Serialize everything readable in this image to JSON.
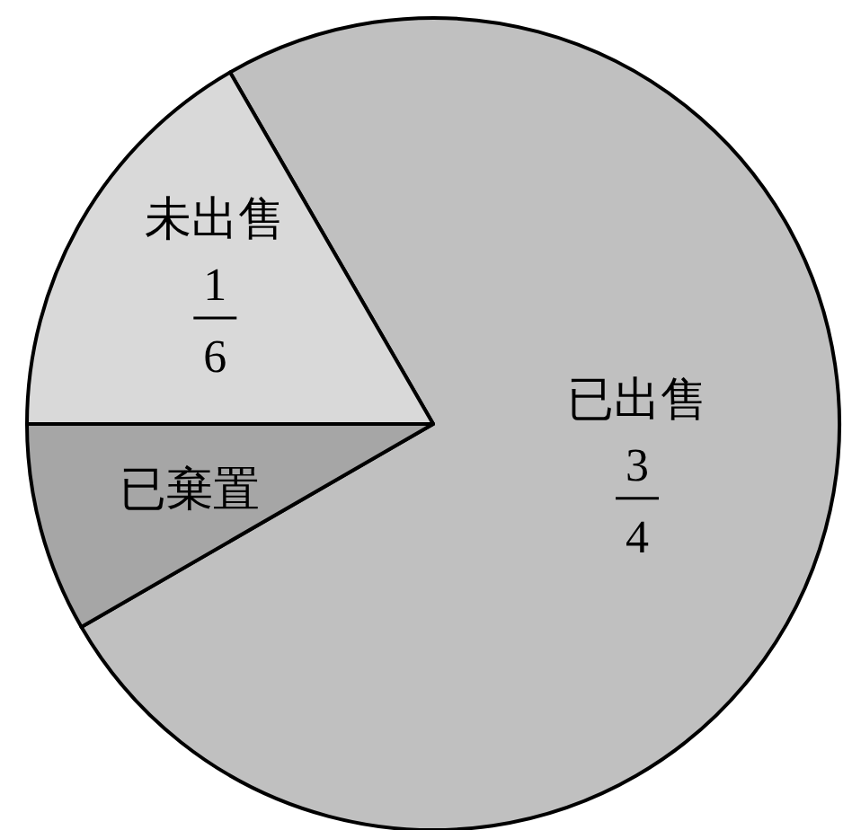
{
  "chart_data": {
    "type": "pie",
    "categories": [
      "已出售",
      "已棄置",
      "未出售"
    ],
    "values": [
      0.75,
      0.08333,
      0.16667
    ],
    "colors": [
      "#c0c0c0",
      "#a6a6a6",
      "#d9d9d9"
    ],
    "value_labels": [
      "3/4",
      null,
      "1/6"
    ]
  }
}
